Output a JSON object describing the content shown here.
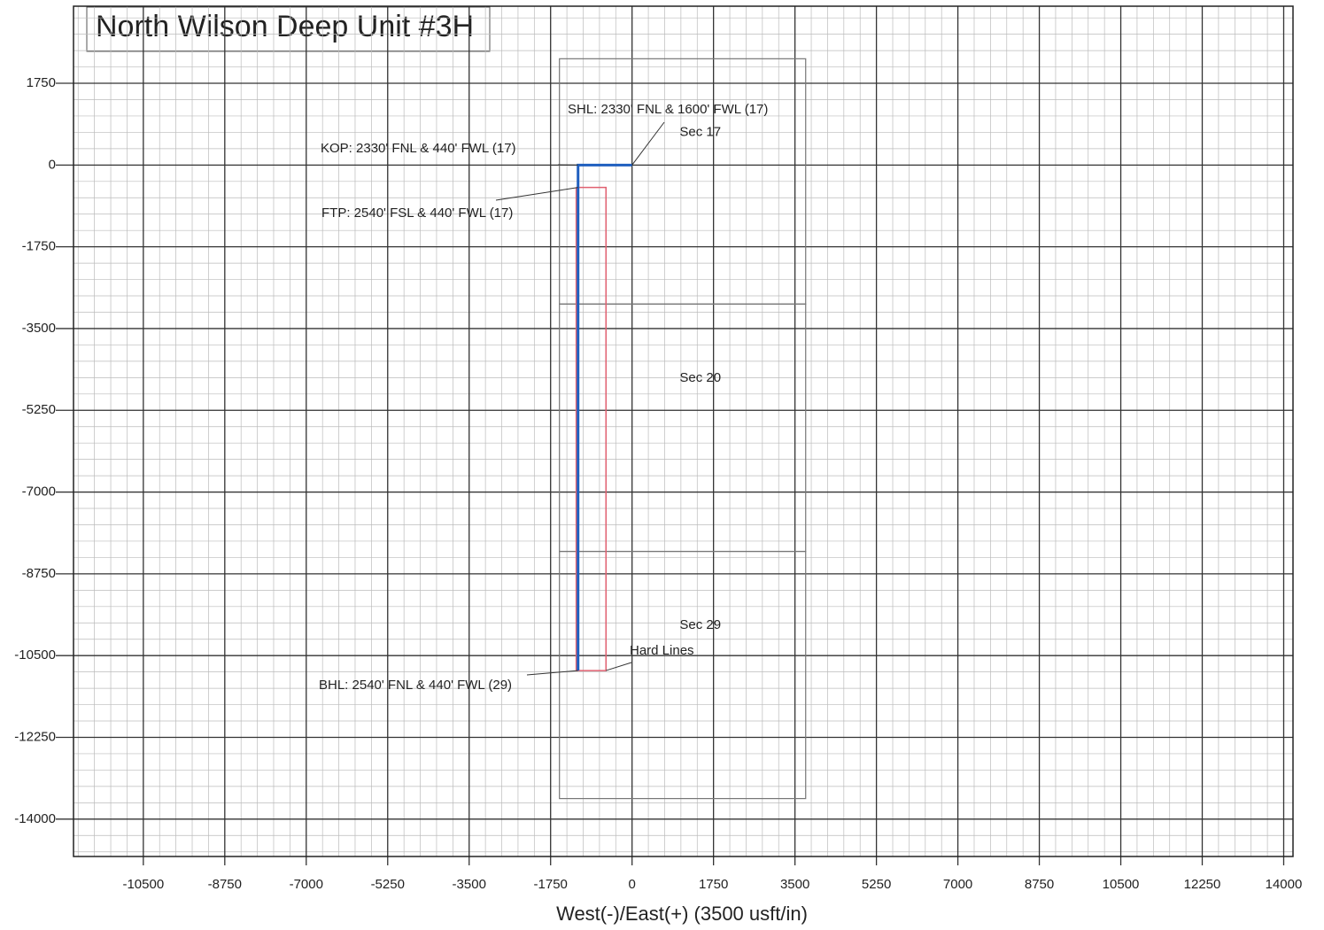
{
  "chart_data": {
    "type": "line",
    "title": "North Wilson Deep Unit #3H",
    "x_label": "West(-)/East(+) (3500 usft/in)",
    "xlim": [
      -12000,
      14200
    ],
    "ylim": [
      -14800,
      3400
    ],
    "xticks": [
      -10500,
      -8750,
      -7000,
      -5250,
      -3500,
      -1750,
      0,
      1750,
      3500,
      5250,
      7000,
      8750,
      10500,
      12250,
      14000
    ],
    "yticks": [
      1750,
      0,
      -1750,
      -3500,
      -5250,
      -7000,
      -8750,
      -10500,
      -12250,
      -14000
    ],
    "grid": true,
    "series": [
      {
        "color": "#1f5fbf",
        "x": [
          0,
          -1160,
          -1160
        ],
        "values": [
          0,
          0,
          -10820
        ]
      },
      {
        "color": "#e06070",
        "x": [
          -1200,
          -560,
          -560,
          -1200,
          -1200
        ],
        "values": [
          -480,
          -480,
          -10820,
          -10820,
          -480
        ]
      }
    ],
    "sections": [
      {
        "label": "Sec 17",
        "x": [
          -1560,
          3730
        ],
        "y": [
          2275,
          -2975
        ]
      },
      {
        "label": "Sec 20",
        "x": [
          -1560,
          3730
        ],
        "y": [
          -2975,
          -8270
        ]
      },
      {
        "label": "Sec 29",
        "x": [
          -1560,
          3730
        ],
        "y": [
          -8270,
          -13560
        ]
      }
    ],
    "section_color": "#777777",
    "annotations": [
      {
        "text": "SHL: 2330' FNL & 1600' FWL (17)",
        "x": 0,
        "y": 0
      },
      {
        "text": "KOP: 2330' FNL & 440' FWL (17)",
        "x": -1160,
        "y": 0
      },
      {
        "text": "FTP: 2540' FSL & 440' FWL (17)",
        "x": -1160,
        "y": -480
      },
      {
        "text": "Hard Lines",
        "x": -560,
        "y": -10820
      },
      {
        "text": "BHL: 2540' FNL & 440' FWL (29)",
        "x": -1160,
        "y": -10820
      }
    ]
  }
}
